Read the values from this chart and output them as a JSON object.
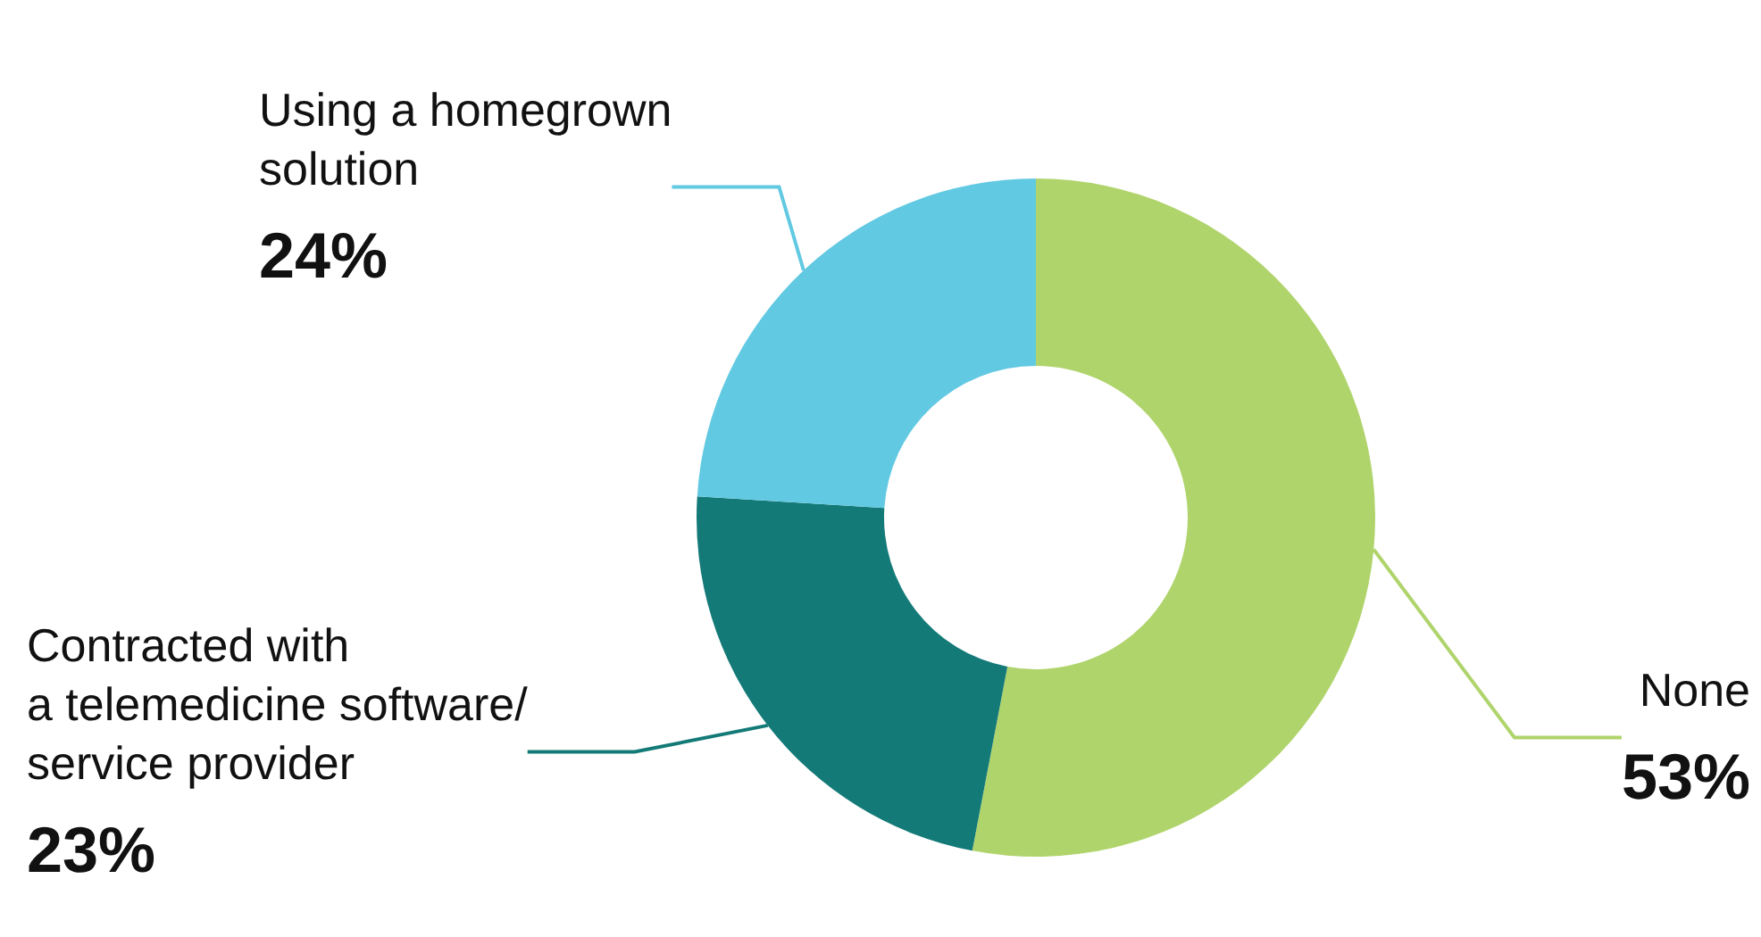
{
  "chart_data": {
    "type": "donut",
    "categories": [
      "None",
      "Contracted with\na telemedicine software/\nservice provider",
      "Using a homegrown\nsolution"
    ],
    "values": [
      53,
      23,
      24
    ],
    "colors": [
      "#b0d46c",
      "#137a78",
      "#62c9e2"
    ],
    "value_labels": [
      "53%",
      "23%",
      "24%"
    ],
    "legend": false
  }
}
